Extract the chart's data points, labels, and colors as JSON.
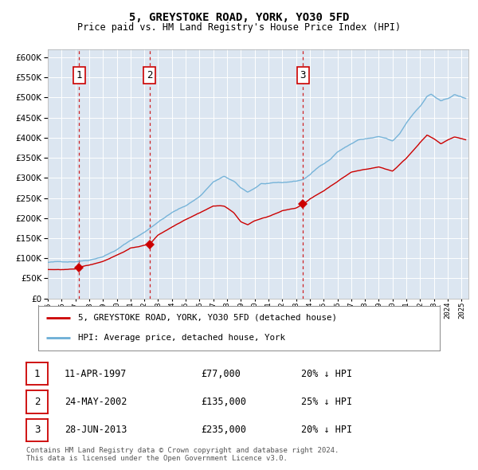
{
  "title": "5, GREYSTOKE ROAD, YORK, YO30 5FD",
  "subtitle": "Price paid vs. HM Land Registry's House Price Index (HPI)",
  "legend_line1": "5, GREYSTOKE ROAD, YORK, YO30 5FD (detached house)",
  "legend_line2": "HPI: Average price, detached house, York",
  "footer1": "Contains HM Land Registry data © Crown copyright and database right 2024.",
  "footer2": "This data is licensed under the Open Government Licence v3.0.",
  "transactions": [
    {
      "label": "1",
      "date": "11-APR-1997",
      "price": 77000,
      "price_str": "£77,000",
      "hpi_pct": "20% ↓ HPI"
    },
    {
      "label": "2",
      "date": "24-MAY-2002",
      "price": 135000,
      "price_str": "£135,000",
      "hpi_pct": "25% ↓ HPI"
    },
    {
      "label": "3",
      "date": "28-JUN-2013",
      "price": 235000,
      "price_str": "£235,000",
      "hpi_pct": "20% ↓ HPI"
    }
  ],
  "transaction_dates_decimal": [
    1997.28,
    2002.39,
    2013.49
  ],
  "hpi_color": "#6baed6",
  "price_color": "#cc0000",
  "vline_color": "#cc0000",
  "background_color": "#dce6f1",
  "ylim": [
    0,
    620000
  ],
  "yticks": [
    0,
    50000,
    100000,
    150000,
    200000,
    250000,
    300000,
    350000,
    400000,
    450000,
    500000,
    550000,
    600000
  ],
  "xlim_start": 1995.0,
  "xlim_end": 2025.5,
  "hpi_waypoints_t": [
    1995.0,
    1996.0,
    1997.0,
    1998.0,
    1999.0,
    2000.0,
    2001.0,
    2002.0,
    2003.0,
    2004.0,
    2005.0,
    2006.0,
    2007.0,
    2007.8,
    2008.5,
    2009.0,
    2009.5,
    2010.0,
    2010.5,
    2011.0,
    2011.5,
    2012.0,
    2012.5,
    2013.0,
    2013.5,
    2014.0,
    2014.5,
    2015.0,
    2015.5,
    2016.0,
    2016.5,
    2017.0,
    2017.5,
    2018.0,
    2018.5,
    2019.0,
    2019.5,
    2020.0,
    2020.5,
    2021.0,
    2021.5,
    2022.0,
    2022.5,
    2022.8,
    2023.0,
    2023.5,
    2024.0,
    2024.5,
    2025.0,
    2025.3
  ],
  "hpi_waypoints_v": [
    90000,
    91000,
    93000,
    98000,
    108000,
    125000,
    148000,
    168000,
    195000,
    218000,
    235000,
    258000,
    295000,
    308000,
    295000,
    278000,
    268000,
    278000,
    290000,
    288000,
    290000,
    290000,
    292000,
    294000,
    298000,
    310000,
    325000,
    338000,
    350000,
    368000,
    378000,
    388000,
    398000,
    400000,
    402000,
    404000,
    400000,
    392000,
    410000,
    438000,
    462000,
    480000,
    505000,
    510000,
    505000,
    492000,
    498000,
    508000,
    502000,
    498000
  ],
  "price_waypoints_t": [
    1995.0,
    1997.0,
    1997.28,
    1998.0,
    1999.0,
    2000.0,
    2001.0,
    2002.39,
    2003.0,
    2004.0,
    2005.0,
    2006.0,
    2007.0,
    2007.8,
    2008.5,
    2009.0,
    2009.5,
    2010.0,
    2011.0,
    2012.0,
    2013.0,
    2013.49,
    2014.0,
    2015.0,
    2016.0,
    2017.0,
    2018.0,
    2019.0,
    2020.0,
    2021.0,
    2022.0,
    2022.5,
    2023.0,
    2023.5,
    2024.0,
    2024.5,
    2025.0,
    2025.3
  ],
  "price_waypoints_v": [
    72000,
    72000,
    77000,
    82000,
    92000,
    108000,
    125000,
    135000,
    158000,
    178000,
    198000,
    215000,
    232000,
    232000,
    215000,
    192000,
    185000,
    195000,
    205000,
    218000,
    225000,
    235000,
    248000,
    268000,
    292000,
    315000,
    322000,
    328000,
    318000,
    350000,
    390000,
    408000,
    398000,
    385000,
    395000,
    402000,
    398000,
    395000
  ]
}
